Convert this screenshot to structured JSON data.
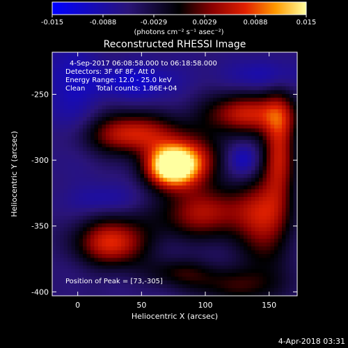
{
  "chart_data": {
    "type": "heatmap",
    "title": "Reconstructed RHESSI Image",
    "xlabel": "Heliocentric X (arcsec)",
    "ylabel": "Heliocentric Y (arcsec)",
    "xlim": [
      -20,
      172
    ],
    "ylim": [
      -403,
      -218
    ],
    "xticks": [
      0,
      50,
      100,
      150
    ],
    "yticks": [
      -250,
      -300,
      -350,
      -400
    ],
    "colorbar": {
      "min": -0.015,
      "max": 0.015,
      "ticks": [
        "-0.015",
        "-0.0088",
        "-0.0029",
        "0.0029",
        "0.0088",
        "0.015"
      ],
      "units_label": "(photons cm⁻² s⁻¹ asec⁻²)"
    },
    "annotations": [
      "4-Sep-2017 06:08:58.000 to 06:18:58.000",
      "Detectors: 3F 6F 8F, Att 0",
      "Energy Range: 12.0 - 25.0 keV",
      "Clean     Total counts: 1.86E+04"
    ],
    "peak": {
      "label": "Position of Peak = [73,-305]",
      "x": 73,
      "y": -305
    },
    "footer_timestamp": "4-Apr-2018 03:31",
    "sources": [
      {
        "x": 73,
        "y": -305,
        "sx": 14,
        "sy": 11,
        "amp": 1.15
      },
      {
        "x": 42,
        "y": -280,
        "sx": 26,
        "sy": 11,
        "amp": 0.72
      },
      {
        "x": 90,
        "y": -300,
        "sx": 18,
        "sy": 13,
        "amp": 0.55
      },
      {
        "x": 132,
        "y": -265,
        "sx": 24,
        "sy": 11,
        "amp": 0.68
      },
      {
        "x": 158,
        "y": -290,
        "sx": 9,
        "sy": 30,
        "amp": 0.62
      },
      {
        "x": 100,
        "y": -340,
        "sx": 26,
        "sy": 14,
        "amp": 0.62
      },
      {
        "x": 146,
        "y": -345,
        "sx": 14,
        "sy": 26,
        "amp": 0.55
      },
      {
        "x": 27,
        "y": -362,
        "sx": 20,
        "sy": 13,
        "amp": 0.75
      },
      {
        "x": 125,
        "y": -395,
        "sx": 28,
        "sy": 10,
        "amp": 0.35
      },
      {
        "x": 80,
        "y": -385,
        "sx": 20,
        "sy": 8,
        "amp": 0.3
      },
      {
        "x": 130,
        "y": -300,
        "sx": 9,
        "sy": 9,
        "amp": -0.38
      },
      {
        "x": 45,
        "y": -240,
        "sx": 24,
        "sy": 9,
        "amp": -0.35
      },
      {
        "x": 150,
        "y": -235,
        "sx": 22,
        "sy": 9,
        "amp": -0.25
      },
      {
        "x": -5,
        "y": -245,
        "sx": 14,
        "sy": 30,
        "amp": -0.25
      },
      {
        "x": 20,
        "y": -330,
        "sx": 20,
        "sy": 8,
        "amp": -0.2
      }
    ]
  }
}
